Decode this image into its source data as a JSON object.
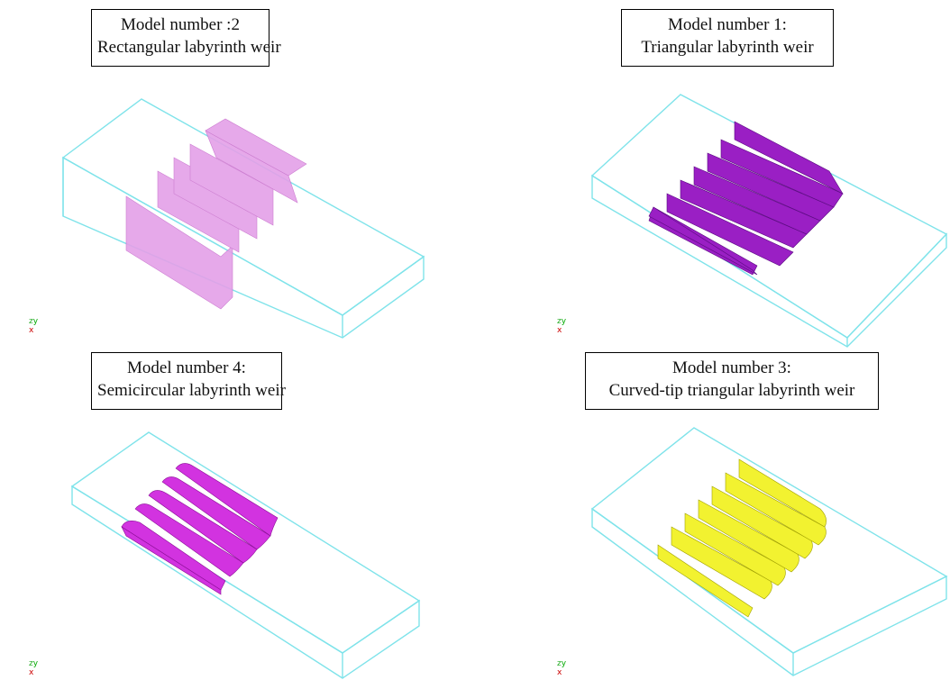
{
  "panels": [
    {
      "id": "p2",
      "title_line1": "Model number :2",
      "title_line2": "Rectangular labyrinth weir",
      "weir_color": "#e4a0e8",
      "weir_shape": "rectangular"
    },
    {
      "id": "p1",
      "title_line1": "Model number 1:",
      "title_line2": "Triangular labyrinth weir",
      "weir_color": "#9a1fc4",
      "weir_shape": "triangular"
    },
    {
      "id": "p4",
      "title_line1": "Model number 4:",
      "title_line2": "Semicircular labyrinth weir",
      "weir_color": "#d233e0",
      "weir_shape": "semicircular"
    },
    {
      "id": "p3",
      "title_line1": "Model number 3:",
      "title_line2": "Curved-tip triangular labyrinth weir",
      "weir_color": "#f2f230",
      "weir_shape": "curved-tip-triangular"
    }
  ],
  "channel_color": "#7fe3ea",
  "axis_triad": {
    "labels": [
      "z",
      "y",
      "x"
    ],
    "icon": "xyz-axis-triad-icon"
  }
}
